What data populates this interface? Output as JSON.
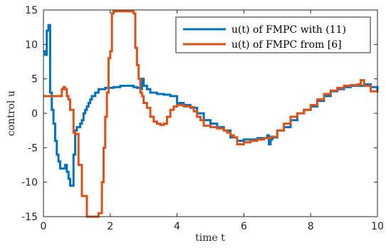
{
  "chart_data": {
    "type": "line",
    "title": "",
    "xlabel": "time t",
    "ylabel": "control u",
    "xlim": [
      0,
      10
    ],
    "ylim": [
      -15,
      15
    ],
    "xticks": [
      0,
      2,
      4,
      6,
      8,
      10
    ],
    "yticks": [
      15,
      10,
      5,
      0,
      -5,
      -10,
      -15
    ],
    "legend": "top-right",
    "grid": false,
    "series": [
      {
        "name": "u(t) of FMPC with (11)",
        "color": "#0072BD",
        "x": [
          0,
          0.05,
          0.1,
          0.15,
          0.2,
          0.25,
          0.3,
          0.35,
          0.4,
          0.45,
          0.5,
          0.55,
          0.6,
          0.65,
          0.7,
          0.75,
          0.8,
          0.85,
          0.9,
          0.95,
          1.0,
          1.05,
          1.1,
          1.15,
          1.2,
          1.25,
          1.3,
          1.35,
          1.4,
          1.45,
          1.5,
          1.55,
          1.6,
          1.65,
          1.7,
          1.75,
          1.8,
          1.85,
          1.9,
          1.95,
          2.0,
          2.1,
          2.2,
          2.3,
          2.5,
          2.7,
          2.8,
          2.9,
          2.95,
          3.0,
          3.1,
          3.2,
          3.4,
          3.6,
          3.8,
          4.0,
          4.2,
          4.4,
          4.6,
          4.8,
          5.0,
          5.2,
          5.4,
          5.6,
          5.8,
          6.0,
          6.2,
          6.4,
          6.6,
          6.7,
          6.75,
          6.8,
          6.85,
          7.0,
          7.2,
          7.4,
          7.6,
          7.8,
          8.0,
          8.2,
          8.4,
          8.6,
          8.8,
          9.0,
          9.2,
          9.4,
          9.6,
          9.8,
          10.0
        ],
        "y": [
          9,
          8.5,
          12,
          12.8,
          3,
          0.5,
          -1.5,
          -4,
          -6,
          -7,
          -8,
          -8,
          -8,
          -7.5,
          -8.5,
          -9.5,
          -10.5,
          -10.5,
          -6,
          -2.5,
          -2,
          -2,
          -1.5,
          -1,
          0,
          0.5,
          1,
          1.5,
          2,
          2.5,
          2.5,
          3,
          3,
          3.5,
          3.5,
          3.5,
          3.5,
          3.7,
          3.7,
          3.7,
          3.7,
          3.8,
          3.8,
          4,
          4,
          3.8,
          3.7,
          3.5,
          5,
          4,
          3.5,
          3,
          2.8,
          2.7,
          2.5,
          1.5,
          1.2,
          0.8,
          0,
          -1,
          -1.5,
          -2,
          -2.5,
          -3.5,
          -4,
          -3.8,
          -3.8,
          -3.6,
          -3.6,
          -3.2,
          -4.5,
          -3.8,
          -3.5,
          -2.5,
          -2,
          -1,
          0,
          0.5,
          1,
          1.8,
          2.5,
          3.2,
          3.5,
          3.8,
          4.0,
          4.0,
          4.2,
          3.8,
          3.0
        ]
      },
      {
        "name": "u(t) of FMPC from [6]",
        "color": "#D95319",
        "x": [
          0,
          0.1,
          0.3,
          0.5,
          0.55,
          0.6,
          0.65,
          0.7,
          0.75,
          0.8,
          0.9,
          0.95,
          1.0,
          1.05,
          1.1,
          1.15,
          1.2,
          1.3,
          1.35,
          1.4,
          1.5,
          1.55,
          1.6,
          1.65,
          1.7,
          1.75,
          1.8,
          1.85,
          1.9,
          1.95,
          2.0,
          2.05,
          2.1,
          2.15,
          2.2,
          2.3,
          2.4,
          2.5,
          2.6,
          2.7,
          2.75,
          2.8,
          2.85,
          2.9,
          2.95,
          3.0,
          3.1,
          3.2,
          3.3,
          3.4,
          3.5,
          3.6,
          3.7,
          3.8,
          3.9,
          4.0,
          4.2,
          4.4,
          4.5,
          4.6,
          4.7,
          4.8,
          5.0,
          5.2,
          5.4,
          5.5,
          5.6,
          5.7,
          5.8,
          6.0,
          6.2,
          6.4,
          6.6,
          6.8,
          7.0,
          7.2,
          7.4,
          7.6,
          7.8,
          8.0,
          8.2,
          8.4,
          8.6,
          8.8,
          9.0,
          9.2,
          9.4,
          9.5,
          9.6,
          9.8,
          10.0
        ],
        "y": [
          2.5,
          2.5,
          2.5,
          2.5,
          3.5,
          3.8,
          3.5,
          2.5,
          2.0,
          0.5,
          -2.8,
          -3,
          -3,
          -7.5,
          -7.5,
          -12,
          -12,
          -15,
          -15,
          -15,
          -15,
          -15,
          -15,
          -14.5,
          -14.5,
          -10,
          -5,
          -0.5,
          3,
          8,
          9,
          14.5,
          14.8,
          14.8,
          14.8,
          14.8,
          14.8,
          14.8,
          14.8,
          14.5,
          9.5,
          7,
          5,
          3,
          2.5,
          1.5,
          0.8,
          -0.5,
          -1.2,
          -1.5,
          -1.7,
          -1.5,
          -0.5,
          0.5,
          1,
          1.2,
          1,
          0.9,
          0.3,
          -0.5,
          -1,
          -1.8,
          -2,
          -2.2,
          -2.5,
          -2.8,
          -3.2,
          -3.5,
          -4.5,
          -4.2,
          -4,
          -3.8,
          -3.6,
          -3.4,
          -2.5,
          -1.5,
          -0.5,
          0,
          0.5,
          1.2,
          2,
          2.8,
          3.3,
          3.7,
          4.0,
          4.1,
          4.2,
          4.8,
          4.0,
          3.2,
          3.0
        ]
      }
    ]
  }
}
